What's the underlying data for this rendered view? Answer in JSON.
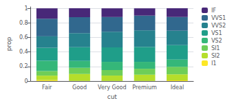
{
  "chart_data": {
    "type": "bar",
    "stacked": true,
    "x_label": "cut",
    "y_label": "prop",
    "categories": [
      "Fair",
      "Good",
      "Very Good",
      "Premium",
      "Ideal"
    ],
    "series": [
      {
        "name": "I1",
        "color": "#fde725",
        "values": [
          0.013,
          0.003,
          0.002,
          0.002,
          0.01
        ]
      },
      {
        "name": "SI2",
        "color": "#b5de2b",
        "values": [
          0.061,
          0.094,
          0.073,
          0.085,
          0.082
        ]
      },
      {
        "name": "SI1",
        "color": "#6ece58",
        "values": [
          0.063,
          0.084,
          0.076,
          0.082,
          0.103
        ]
      },
      {
        "name": "VS2",
        "color": "#35b779",
        "values": [
          0.142,
          0.095,
          0.113,
          0.095,
          0.099
        ]
      },
      {
        "name": "VS1",
        "color": "#1f9e89",
        "values": [
          0.178,
          0.188,
          0.199,
          0.205,
          0.199
        ]
      },
      {
        "name": "VVS2",
        "color": "#26828e",
        "values": [
          0.158,
          0.195,
          0.215,
          0.228,
          0.199
        ]
      },
      {
        "name": "VVS1",
        "color": "#31688e",
        "values": [
          0.242,
          0.219,
          0.202,
          0.203,
          0.189
        ]
      },
      {
        "name": "IF",
        "color": "#482878",
        "values": [
          0.143,
          0.122,
          0.12,
          0.1,
          0.119
        ]
      }
    ],
    "ylim": [
      0,
      1.02
    ],
    "yticks": [
      0,
      0.2,
      0.4,
      0.6,
      0.8,
      1
    ],
    "grid": true,
    "legend": "right"
  }
}
